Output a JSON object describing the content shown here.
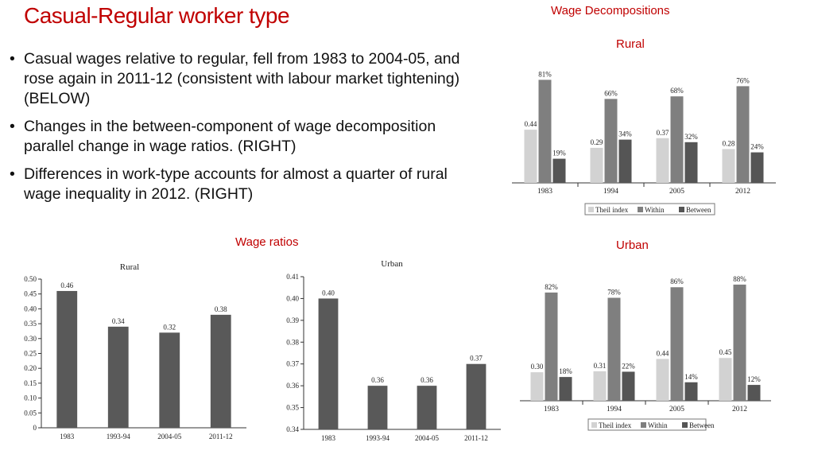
{
  "header": {
    "title": "Casual-Regular worker type"
  },
  "bullets": [
    "Casual wages relative to regular, fell from 1983 to 2004-05, and rose again in 2011-12 (consistent with labour market tightening) (BELOW)",
    "Changes in the between-component of wage decomposition parallel change in wage ratios. (RIGHT)",
    "Differences in work-type accounts for almost a quarter of rural wage inequality in 2012. (RIGHT)"
  ],
  "captions": {
    "wage_decompositions": "Wage Decompositions",
    "rural": "Rural",
    "urban": "Urban",
    "wage_ratios": "Wage ratios"
  },
  "colors": {
    "theil": "#d2d2d2",
    "within": "#7f7f7f",
    "between": "#555555",
    "ratio_bar": "#595959",
    "accent": "#c00000"
  },
  "chart_data": [
    {
      "id": "ratio_rural",
      "type": "bar",
      "title": "Rural",
      "categories": [
        "1983",
        "1993-94",
        "2004-05",
        "2011-12"
      ],
      "values": [
        0.46,
        0.34,
        0.32,
        0.38
      ],
      "value_labels": [
        "0.46",
        "0.34",
        "0.32",
        "0.38"
      ],
      "ylim": [
        0,
        0.5
      ],
      "yticks": [
        "0",
        "0.05",
        "0.10",
        "0.15",
        "0.20",
        "0.25",
        "0.30",
        "0.35",
        "0.40",
        "0.45",
        "0.50"
      ]
    },
    {
      "id": "ratio_urban",
      "type": "bar",
      "title": "Urban",
      "categories": [
        "1983",
        "1993-94",
        "2004-05",
        "2011-12"
      ],
      "values": [
        0.4,
        0.36,
        0.36,
        0.37
      ],
      "value_labels": [
        "0.40",
        "0.36",
        "0.36",
        "0.37"
      ],
      "ylim": [
        0.34,
        0.41
      ],
      "yticks": [
        "0.34",
        "0.35",
        "0.36",
        "0.37",
        "0.38",
        "0.39",
        "0.40",
        "0.41"
      ]
    },
    {
      "id": "decomp_rural",
      "type": "bar",
      "categories": [
        "1983",
        "1994",
        "2005",
        "2012"
      ],
      "series": [
        {
          "name": "Theil index",
          "values": [
            0.44,
            0.29,
            0.37,
            0.28
          ],
          "labels": [
            "0.44",
            "0.29",
            "0.37",
            "0.28"
          ]
        },
        {
          "name": "Within",
          "values": [
            81,
            66,
            68,
            76
          ],
          "labels": [
            "81%",
            "66%",
            "68%",
            "76%"
          ]
        },
        {
          "name": "Between",
          "values": [
            19,
            34,
            32,
            24
          ],
          "labels": [
            "19%",
            "34%",
            "32%",
            "24%"
          ]
        }
      ],
      "legend": "bottom"
    },
    {
      "id": "decomp_urban",
      "type": "bar",
      "categories": [
        "1983",
        "1994",
        "2005",
        "2012"
      ],
      "series": [
        {
          "name": "Theil index",
          "values": [
            0.3,
            0.31,
            0.44,
            0.45
          ],
          "labels": [
            "0.30",
            "0.31",
            "0.44",
            "0.45"
          ]
        },
        {
          "name": "Within",
          "values": [
            82,
            78,
            86,
            88
          ],
          "labels": [
            "82%",
            "78%",
            "86%",
            "88%"
          ]
        },
        {
          "name": "Between",
          "values": [
            18,
            22,
            14,
            12
          ],
          "labels": [
            "18%",
            "22%",
            "14%",
            "12%"
          ]
        }
      ],
      "legend": "bottom"
    }
  ]
}
